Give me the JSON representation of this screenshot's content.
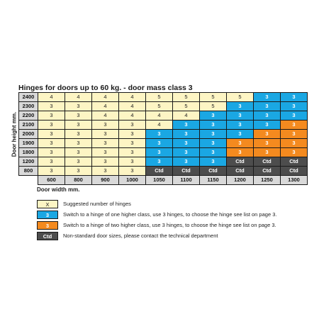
{
  "title": "Hinges for doors up to 60 kg. - door mass class 3",
  "y_axis_label": "Door height mm.",
  "x_axis_label": "Door width mm.",
  "widths": [
    "600",
    "800",
    "900",
    "1000",
    "1050",
    "1100",
    "1150",
    "1200",
    "1250",
    "1300"
  ],
  "rows": [
    {
      "height": "2400",
      "cells": [
        [
          "4",
          "Y"
        ],
        [
          "4",
          "Y"
        ],
        [
          "4",
          "Y"
        ],
        [
          "4",
          "Y"
        ],
        [
          "5",
          "Y"
        ],
        [
          "5",
          "Y"
        ],
        [
          "5",
          "Y"
        ],
        [
          "5",
          "Y"
        ],
        [
          "3",
          "B"
        ],
        [
          "3",
          "B"
        ]
      ]
    },
    {
      "height": "2300",
      "cells": [
        [
          "3",
          "Y"
        ],
        [
          "3",
          "Y"
        ],
        [
          "4",
          "Y"
        ],
        [
          "4",
          "Y"
        ],
        [
          "5",
          "Y"
        ],
        [
          "5",
          "Y"
        ],
        [
          "5",
          "Y"
        ],
        [
          "3",
          "B"
        ],
        [
          "3",
          "B"
        ],
        [
          "3",
          "B"
        ]
      ]
    },
    {
      "height": "2200",
      "cells": [
        [
          "3",
          "Y"
        ],
        [
          "3",
          "Y"
        ],
        [
          "4",
          "Y"
        ],
        [
          "4",
          "Y"
        ],
        [
          "4",
          "Y"
        ],
        [
          "4",
          "Y"
        ],
        [
          "3",
          "B"
        ],
        [
          "3",
          "B"
        ],
        [
          "3",
          "B"
        ],
        [
          "3",
          "B"
        ]
      ]
    },
    {
      "height": "2100",
      "cells": [
        [
          "3",
          "Y"
        ],
        [
          "3",
          "Y"
        ],
        [
          "3",
          "Y"
        ],
        [
          "3",
          "Y"
        ],
        [
          "4",
          "Y"
        ],
        [
          "3",
          "B"
        ],
        [
          "3",
          "B"
        ],
        [
          "3",
          "B"
        ],
        [
          "3",
          "B"
        ],
        [
          "3",
          "O"
        ]
      ]
    },
    {
      "height": "2000",
      "cells": [
        [
          "3",
          "Y"
        ],
        [
          "3",
          "Y"
        ],
        [
          "3",
          "Y"
        ],
        [
          "3",
          "Y"
        ],
        [
          "3",
          "B"
        ],
        [
          "3",
          "B"
        ],
        [
          "3",
          "B"
        ],
        [
          "3",
          "B"
        ],
        [
          "3",
          "O"
        ],
        [
          "3",
          "O"
        ]
      ]
    },
    {
      "height": "1900",
      "cells": [
        [
          "3",
          "Y"
        ],
        [
          "3",
          "Y"
        ],
        [
          "3",
          "Y"
        ],
        [
          "3",
          "Y"
        ],
        [
          "3",
          "B"
        ],
        [
          "3",
          "B"
        ],
        [
          "3",
          "B"
        ],
        [
          "3",
          "O"
        ],
        [
          "3",
          "O"
        ],
        [
          "3",
          "O"
        ]
      ]
    },
    {
      "height": "1800",
      "cells": [
        [
          "3",
          "Y"
        ],
        [
          "3",
          "Y"
        ],
        [
          "3",
          "Y"
        ],
        [
          "3",
          "Y"
        ],
        [
          "3",
          "B"
        ],
        [
          "3",
          "B"
        ],
        [
          "3",
          "B"
        ],
        [
          "3",
          "O"
        ],
        [
          "3",
          "O"
        ],
        [
          "3",
          "O"
        ]
      ]
    },
    {
      "height": "1200",
      "cells": [
        [
          "3",
          "Y"
        ],
        [
          "3",
          "Y"
        ],
        [
          "3",
          "Y"
        ],
        [
          "3",
          "Y"
        ],
        [
          "3",
          "B"
        ],
        [
          "3",
          "B"
        ],
        [
          "3",
          "B"
        ],
        [
          "Ctd",
          "G"
        ],
        [
          "Ctd",
          "G"
        ],
        [
          "Ctd",
          "G"
        ]
      ]
    },
    {
      "height": "800",
      "cells": [
        [
          "3",
          "Y"
        ],
        [
          "3",
          "Y"
        ],
        [
          "3",
          "Y"
        ],
        [
          "3",
          "Y"
        ],
        [
          "Ctd",
          "G"
        ],
        [
          "Ctd",
          "G"
        ],
        [
          "Ctd",
          "G"
        ],
        [
          "Ctd",
          "G"
        ],
        [
          "Ctd",
          "G"
        ],
        [
          "Ctd",
          "G"
        ]
      ]
    }
  ],
  "legend": [
    {
      "swatch": "X",
      "cls": "Y",
      "text": "Suggested number of hinges"
    },
    {
      "swatch": "3",
      "cls": "B",
      "text": "Switch to a hinge of one higher class, use 3 hinges, to choose the hinge see list on page 3."
    },
    {
      "swatch": "3",
      "cls": "O",
      "text": "Switch to a hinge of two higher class, use 3 hinges, to choose the hinge see list on page 3."
    },
    {
      "swatch": "Ctd",
      "cls": "G",
      "text": "Non-standard door sizes, please contact the technical department"
    }
  ],
  "colors": {
    "Y": "#fdf5c4",
    "B": "#1aa7e3",
    "O": "#f48a1f",
    "G": "#4d4d4d",
    "header": "#d9d9d9"
  }
}
